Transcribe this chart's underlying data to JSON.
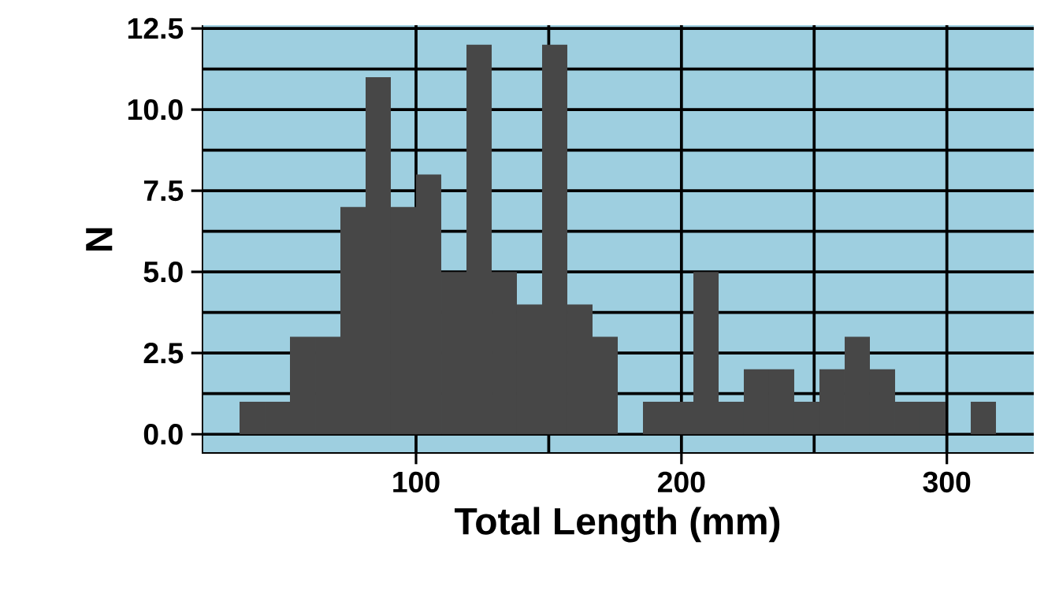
{
  "chart_data": {
    "type": "histogram",
    "xlabel": "Total Length (mm)",
    "ylabel": "N",
    "bins": [
      33.5,
      43,
      52.5,
      62,
      71.5,
      81,
      90.5,
      100,
      109.5,
      119,
      128.5,
      138,
      147.5,
      157,
      166.5,
      176,
      185.5,
      195,
      204.5,
      214,
      223.5,
      233,
      242.5,
      252,
      261.5,
      271,
      280.5,
      290,
      299.5,
      309,
      318.5
    ],
    "values": [
      1,
      1,
      3,
      3,
      7,
      11,
      7,
      8,
      5,
      12,
      5,
      4,
      12,
      4,
      3,
      0,
      1,
      1,
      5,
      1,
      2,
      2,
      1,
      2,
      3,
      2,
      1,
      1,
      0,
      1
    ],
    "color": "#474747",
    "xlim": [
      19.25,
      332.75
    ],
    "ylim": [
      -0.6,
      12.6
    ],
    "xticks": [
      100,
      200,
      300
    ],
    "yticks": [
      {
        "value": 0,
        "label": "0.0"
      },
      {
        "value": 2.5,
        "label": "2.5"
      },
      {
        "value": 5,
        "label": "5.0"
      },
      {
        "value": 7.5,
        "label": "7.5"
      },
      {
        "value": 10,
        "label": "10.0"
      },
      {
        "value": 12.5,
        "label": "12.5"
      }
    ],
    "grid": true
  }
}
